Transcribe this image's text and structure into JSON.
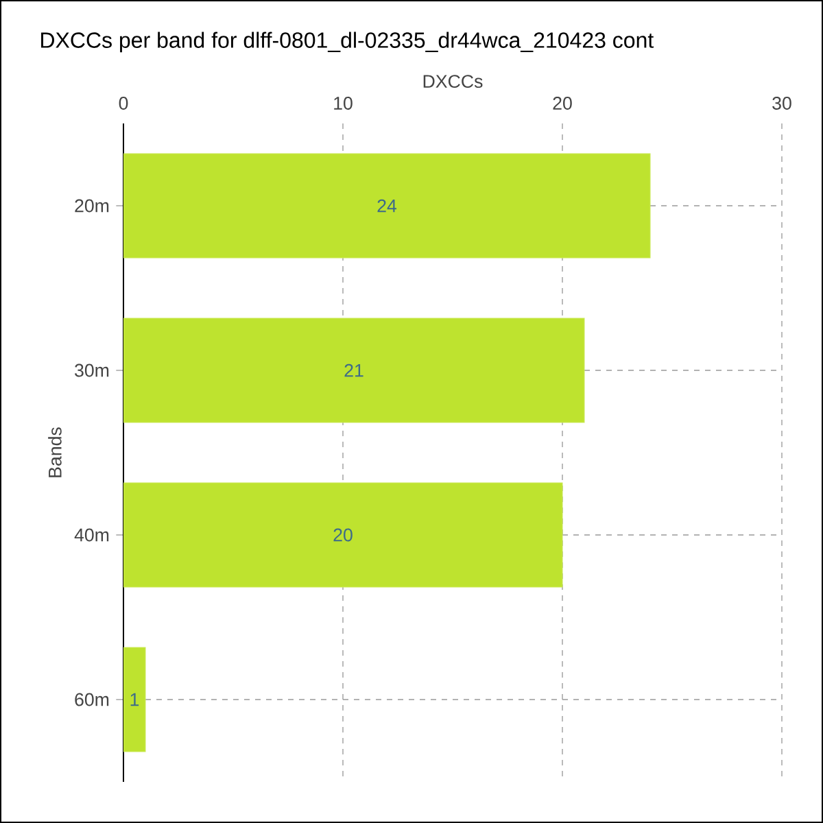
{
  "chart_data": {
    "type": "bar",
    "orientation": "horizontal",
    "title": "DXCCs per band for dlff-0801_dl-02335_dr44wca_210423 cont",
    "xlabel": "DXCCs",
    "ylabel": "Bands",
    "categories": [
      "20m",
      "30m",
      "40m",
      "60m"
    ],
    "values": [
      24,
      21,
      20,
      1
    ],
    "color": "#bee32f",
    "xlim": [
      0,
      30
    ],
    "xticks": [
      0,
      10,
      20,
      30
    ],
    "grid": true,
    "data_labels": true
  }
}
